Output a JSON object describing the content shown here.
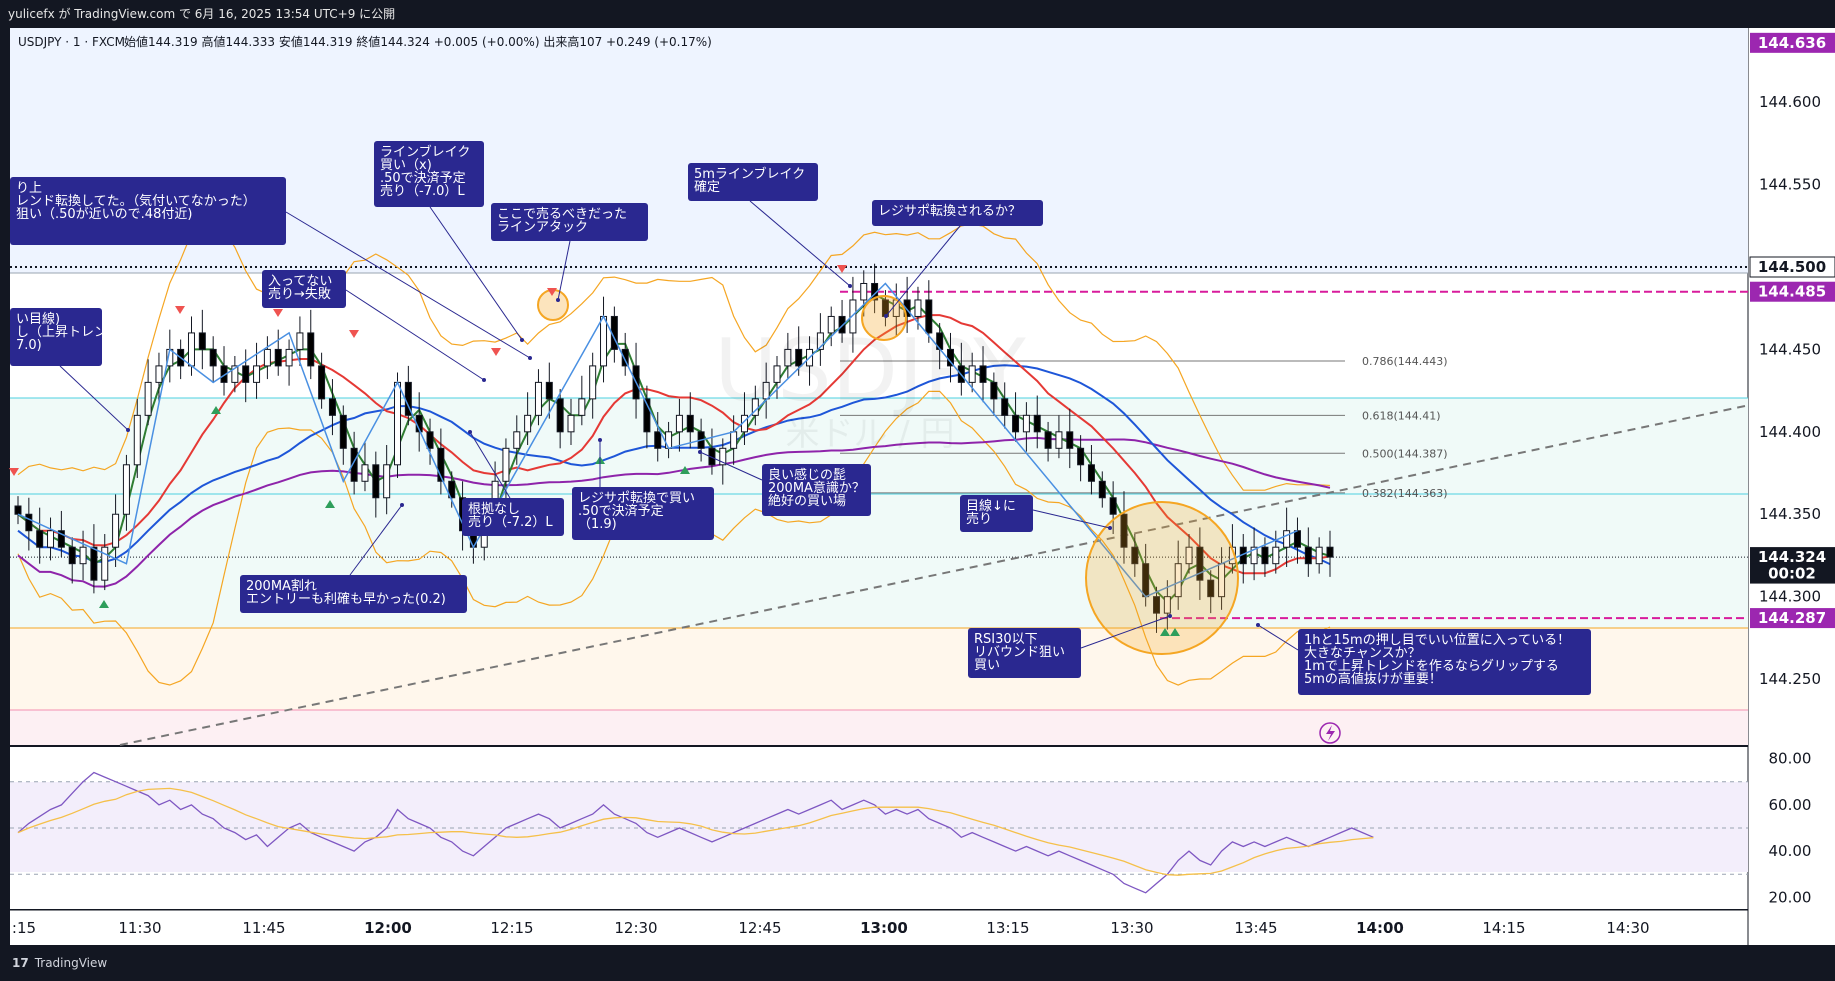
{
  "header": {
    "published_by": "yulicefx が TradingView.com で 6月 16, 2025 13:54 UTC+9 に公開"
  },
  "legend": {
    "symbol": "USDJPY · 1 · FXCM",
    "ohlc": "始値144.319 高値144.333 安値144.319 終値144.324 +0.005 (+0.00%) 出来高107 +0.249 (+0.17%)"
  },
  "footer": {
    "brand": "TradingView",
    "logo_glyph": "17"
  },
  "colors": {
    "background": "#ffffff",
    "up_candle": "#ffffff",
    "down_candle": "#000000",
    "ma_fast": "#2e7d32",
    "ma_mid": "#e53935",
    "ma_slow": "#1e56d8",
    "ma_200": "#8e24aa",
    "bollinger": "#f5a623",
    "annotation_bg": "#2a2890",
    "price_tag": "#9c27b0",
    "zigzag": "#4a90e2"
  },
  "chart_data": {
    "type": "candlestick",
    "symbol": "USDJPY",
    "timeframe": "1",
    "price_axis": {
      "ticks": [
        "144.600",
        "144.550",
        "144.450",
        "144.400",
        "144.350",
        "144.300",
        "144.250"
      ],
      "range": [
        144.21,
        144.645
      ]
    },
    "time_axis": {
      "ticks": [
        ":15",
        "11:30",
        "11:45",
        "12:00",
        "12:15",
        "12:30",
        "12:45",
        "13:00",
        "13:15",
        "13:30",
        "13:45",
        "14:00",
        "14:15",
        "14:30"
      ]
    },
    "price_tags": [
      {
        "label": "144.636",
        "value": 144.636,
        "style": "purple"
      },
      {
        "label": "144.500",
        "value": 144.5,
        "style": "white"
      },
      {
        "label": "144.485",
        "value": 144.485,
        "style": "purple"
      },
      {
        "label": "144.324",
        "value": 144.324,
        "style": "black"
      },
      {
        "label": "00:02",
        "value": 144.314,
        "style": "black"
      },
      {
        "label": "144.287",
        "value": 144.287,
        "style": "purple"
      }
    ],
    "fib_levels": [
      {
        "label": "0.786(144.443)",
        "value": 144.443
      },
      {
        "label": "0.618(144.41)",
        "value": 144.41
      },
      {
        "label": "0.500(144.387)",
        "value": 144.387
      },
      {
        "label": "0.382(144.363)",
        "value": 144.363
      }
    ],
    "closes": [
      144.35,
      144.34,
      144.33,
      144.34,
      144.33,
      144.32,
      144.33,
      144.31,
      144.33,
      144.35,
      144.38,
      144.41,
      144.43,
      144.44,
      144.45,
      144.44,
      144.46,
      144.45,
      144.44,
      144.43,
      144.44,
      144.43,
      144.44,
      144.45,
      144.44,
      144.45,
      144.46,
      144.44,
      144.42,
      144.41,
      144.39,
      144.37,
      144.38,
      144.36,
      144.38,
      144.43,
      144.41,
      144.4,
      144.39,
      144.37,
      144.36,
      144.34,
      144.33,
      144.35,
      144.37,
      144.39,
      144.4,
      144.41,
      144.43,
      144.42,
      144.4,
      144.41,
      144.42,
      144.44,
      144.47,
      144.45,
      144.44,
      144.42,
      144.4,
      144.39,
      144.4,
      144.41,
      144.4,
      144.39,
      144.38,
      144.39,
      144.4,
      144.41,
      144.42,
      144.43,
      144.44,
      144.45,
      144.44,
      144.45,
      144.46,
      144.47,
      144.46,
      144.48,
      144.49,
      144.48,
      144.47,
      144.48,
      144.47,
      144.48,
      144.46,
      144.45,
      144.44,
      144.43,
      144.44,
      144.43,
      144.42,
      144.41,
      144.4,
      144.41,
      144.4,
      144.39,
      144.4,
      144.39,
      144.38,
      144.37,
      144.36,
      144.35,
      144.33,
      144.32,
      144.3,
      144.29,
      144.3,
      144.32,
      144.33,
      144.31,
      144.3,
      144.32,
      144.33,
      144.32,
      144.33,
      144.32,
      144.33,
      144.34,
      144.33,
      144.32,
      144.33,
      144.324
    ],
    "rsi": {
      "ticks": [
        "80.00",
        "60.00",
        "40.00",
        "20.00"
      ],
      "range": [
        15,
        85
      ],
      "values": [
        48,
        52,
        55,
        58,
        60,
        65,
        70,
        74,
        72,
        70,
        68,
        66,
        64,
        60,
        62,
        58,
        60,
        56,
        54,
        50,
        48,
        45,
        47,
        42,
        46,
        50,
        52,
        48,
        46,
        44,
        42,
        40,
        44,
        46,
        50,
        58,
        54,
        52,
        50,
        46,
        44,
        40,
        38,
        42,
        46,
        50,
        52,
        54,
        56,
        54,
        50,
        52,
        54,
        56,
        60,
        56,
        54,
        52,
        48,
        46,
        48,
        50,
        48,
        46,
        44,
        46,
        48,
        50,
        52,
        54,
        56,
        58,
        56,
        58,
        60,
        62,
        58,
        60,
        62,
        60,
        56,
        58,
        56,
        58,
        54,
        52,
        50,
        46,
        48,
        46,
        44,
        42,
        40,
        42,
        40,
        38,
        40,
        38,
        36,
        34,
        32,
        30,
        26,
        24,
        22,
        26,
        30,
        36,
        40,
        36,
        34,
        40,
        44,
        42,
        44,
        42,
        44,
        46,
        44,
        42,
        44,
        46,
        48,
        50,
        48,
        46
      ]
    }
  },
  "annotations": [
    {
      "id": "a1",
      "lines": [
        "り上",
        "レンド転換してた。（気付いてなかった）",
        "狙い（.50が近いので.48付近)"
      ]
    },
    {
      "id": "a2",
      "lines": [
        "い目線)",
        "し（上昇トレンドの為)",
        "7.0)"
      ]
    },
    {
      "id": "a3",
      "lines": [
        "入ってない",
        "売り→失敗"
      ]
    },
    {
      "id": "a4",
      "lines": [
        "ラインブレイク",
        "買い（x)",
        ".50で決済予定",
        "売り（-7.0）L"
      ]
    },
    {
      "id": "a5",
      "lines": [
        "ここで売るべきだった",
        "ラインアタック"
      ]
    },
    {
      "id": "a6",
      "lines": [
        "5mラインブレイク",
        "確定"
      ]
    },
    {
      "id": "a7",
      "lines": [
        "レジサポ転換されるか？"
      ]
    },
    {
      "id": "a8",
      "lines": [
        "根拠なし",
        "売り（-7.2）L"
      ]
    },
    {
      "id": "a9",
      "lines": [
        "レジサポ転換で買い",
        ".50で決済予定",
        "（1.9)"
      ]
    },
    {
      "id": "a10",
      "lines": [
        "良い感じの髭",
        "200MA意識か？",
        "絶好の買い場"
      ]
    },
    {
      "id": "a11",
      "lines": [
        "200MA割れ",
        "エントリーも利確も早かった(0.2)"
      ]
    },
    {
      "id": "a12",
      "lines": [
        "目線↓に",
        "売り"
      ]
    },
    {
      "id": "a13",
      "lines": [
        "RSI30以下",
        "リバウンド狙い",
        "買い"
      ]
    },
    {
      "id": "a14",
      "lines": [
        "1hと15mの押し目でいい位置に入っている！",
        "大きなチャンスか？",
        "1mで上昇トレンドを作るならグリップする",
        "5mの高値抜けが重要！"
      ]
    }
  ],
  "watermark": {
    "symbol": "USDJPY",
    "name": "米ドル / 円"
  }
}
